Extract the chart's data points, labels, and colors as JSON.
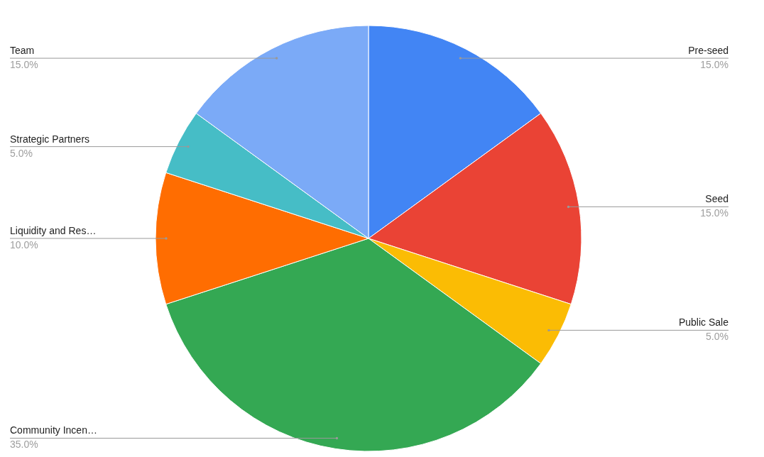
{
  "chart_data": {
    "type": "pie",
    "categories": [
      "Pre-seed",
      "Seed",
      "Public Sale",
      "Community Incen…",
      "Liquidity and Res…",
      "Strategic Partners",
      "Team"
    ],
    "values": [
      15,
      15,
      5,
      35,
      10,
      5,
      15
    ],
    "colors": [
      "#4285f4",
      "#ea4335",
      "#fbbc04",
      "#34a853",
      "#ff6d01",
      "#46bdc6",
      "#7baaf7"
    ],
    "value_labels": [
      "15.0%",
      "15.0%",
      "5.0%",
      "35.0%",
      "10.0%",
      "5.0%",
      "15.0%"
    ]
  }
}
